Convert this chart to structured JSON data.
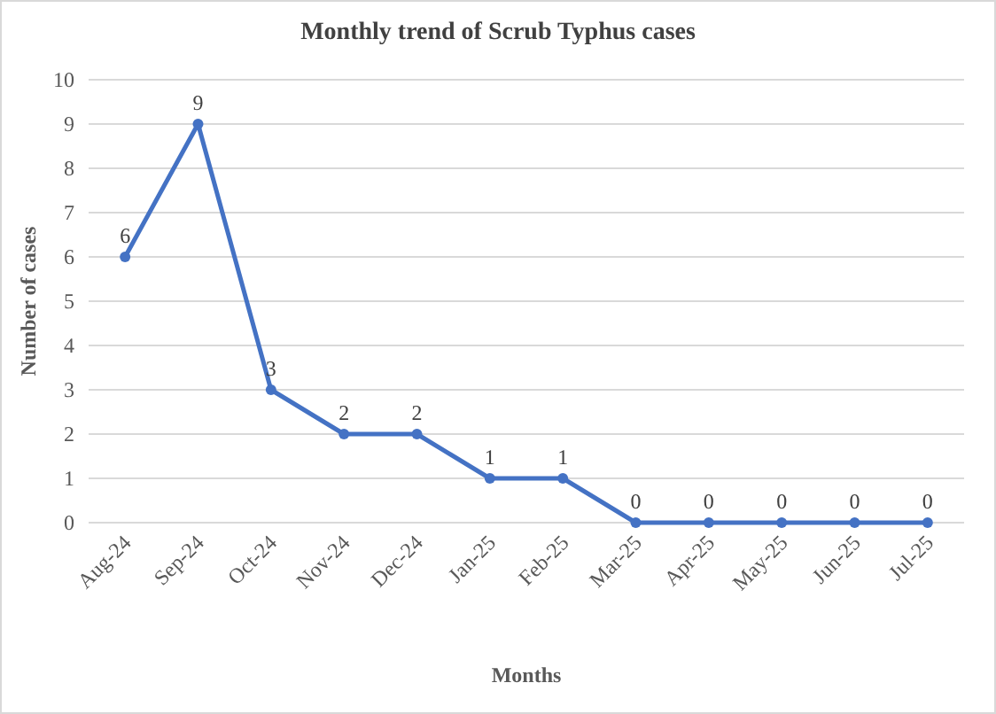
{
  "chart_data": {
    "type": "line",
    "title": "Monthly trend of Scrub Typhus cases",
    "xlabel": "Months",
    "ylabel": "Number of cases",
    "categories": [
      "Aug-24",
      "Sep-24",
      "Oct-24",
      "Nov-24",
      "Dec-24",
      "Jan-25",
      "Feb-25",
      "Mar-25",
      "Apr-25",
      "May-25",
      "Jun-25",
      "Jul-25"
    ],
    "series": [
      {
        "color": "#4472c4",
        "values": [
          6,
          9,
          3,
          2,
          2,
          1,
          1,
          0,
          0,
          0,
          0,
          0
        ]
      }
    ],
    "ylim": [
      0,
      10
    ],
    "yticks": [
      0,
      1,
      2,
      3,
      4,
      5,
      6,
      7,
      8,
      9,
      10
    ],
    "grid": "y",
    "marker": "circle",
    "line_style": "solid",
    "data_labels": true
  }
}
